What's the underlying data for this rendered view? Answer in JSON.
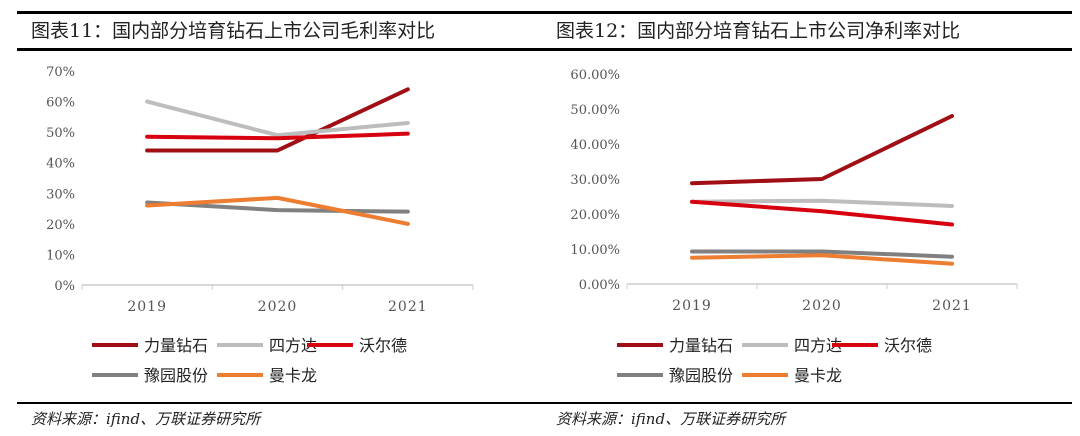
{
  "chart_data": [
    {
      "type": "line",
      "title": "图表11：国内部分培育钻石上市公司毛利率对比",
      "categories": [
        "2019",
        "2020",
        "2021"
      ],
      "ylim": [
        0,
        70
      ],
      "yticks": [
        "0%",
        "10%",
        "20%",
        "30%",
        "40%",
        "50%",
        "60%",
        "70%"
      ],
      "grid": false,
      "legend_position": "bottom",
      "series": [
        {
          "name": "力量钻石",
          "color": "#A00F15",
          "values": [
            44,
            44,
            64
          ]
        },
        {
          "name": "四方达",
          "color": "#BDBDBD",
          "values": [
            60,
            49,
            53
          ]
        },
        {
          "name": "沃尔德",
          "color": "#D7000F",
          "values": [
            48.5,
            48,
            49.5
          ]
        },
        {
          "name": "豫园股份",
          "color": "#808080",
          "values": [
            27,
            24.5,
            24
          ]
        },
        {
          "name": "曼卡龙",
          "color": "#ED7D31",
          "values": [
            26,
            28.5,
            20
          ]
        }
      ],
      "source": "资料来源：ifind、万联证券研究所"
    },
    {
      "type": "line",
      "title": "图表12：国内部分培育钻石上市公司净利率对比",
      "categories": [
        "2019",
        "2020",
        "2021"
      ],
      "ylim": [
        0,
        60
      ],
      "yticks": [
        "0.00%",
        "10.00%",
        "20.00%",
        "30.00%",
        "40.00%",
        "50.00%",
        "60.00%"
      ],
      "grid": false,
      "legend_position": "bottom",
      "series": [
        {
          "name": "力量钻石",
          "color": "#A00F15",
          "values": [
            28.8,
            30,
            48
          ]
        },
        {
          "name": "四方达",
          "color": "#BDBDBD",
          "values": [
            23.5,
            23.8,
            22.3
          ]
        },
        {
          "name": "沃尔德",
          "color": "#D7000F",
          "values": [
            23.5,
            20.8,
            17
          ]
        },
        {
          "name": "豫园股份",
          "color": "#808080",
          "values": [
            9.3,
            9.3,
            7.8
          ]
        },
        {
          "name": "曼卡龙",
          "color": "#ED7D31",
          "values": [
            7.5,
            8.2,
            5.8
          ]
        }
      ],
      "source": "资料来源：ifind、万联证券研究所"
    }
  ]
}
